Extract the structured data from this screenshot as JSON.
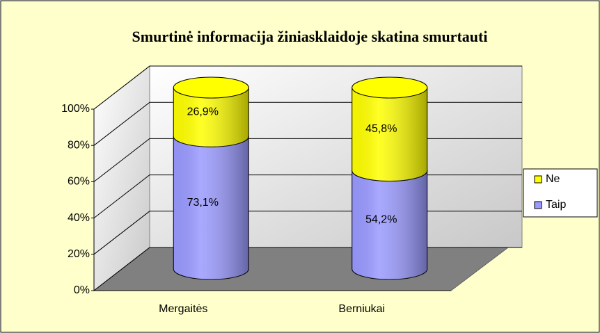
{
  "chart_data": {
    "type": "bar3d_stacked_cylinder",
    "title": "Smurtinė informacija žiniasklaidoje skatina smurtauti",
    "categories": [
      "Mergaitės",
      "Berniukai"
    ],
    "series": [
      {
        "name": "Taip",
        "color": "#9999ff",
        "values": [
          73.1,
          54.2
        ],
        "value_labels": [
          "73,1%",
          "54,2%"
        ]
      },
      {
        "name": "Ne",
        "color": "#ffff00",
        "values": [
          26.9,
          45.8
        ],
        "value_labels": [
          "26,9%",
          "45,8%"
        ]
      }
    ],
    "ylim": [
      0,
      100
    ],
    "yticks": [
      {
        "value": 0,
        "label": "0%"
      },
      {
        "value": 20,
        "label": "20%"
      },
      {
        "value": 40,
        "label": "40%"
      },
      {
        "value": 60,
        "label": "60%"
      },
      {
        "value": 80,
        "label": "80%"
      },
      {
        "value": 100,
        "label": "100%"
      }
    ],
    "grid": true,
    "legend": "right"
  }
}
